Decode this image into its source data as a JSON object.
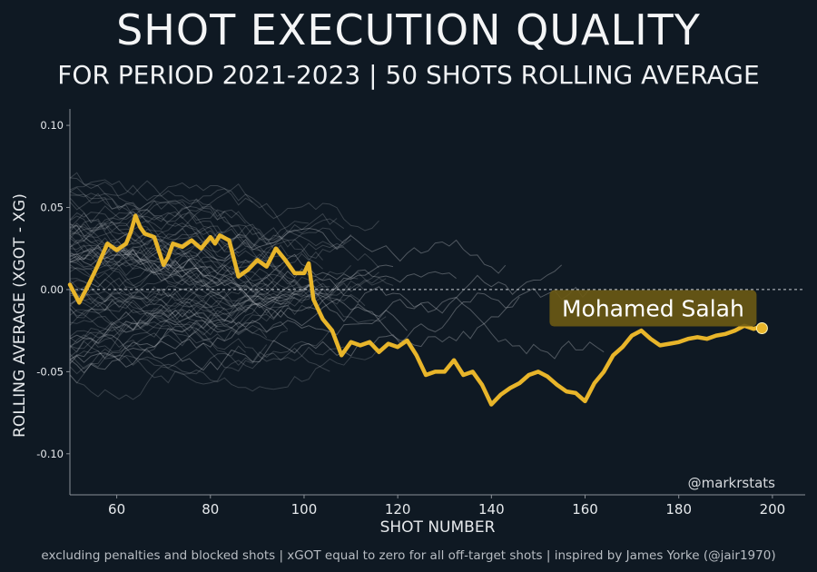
{
  "title": "SHOT EXECUTION QUALITY",
  "subtitle": "FOR PERIOD 2021-2023 | 50 SHOTS ROLLING AVERAGE",
  "footer": "excluding penalties and blocked shots | xGOT equal to zero for all off-target shots | inspired by James Yorke (@jair1970)",
  "credit": "@markrstats",
  "colors": {
    "background": "#0f1923",
    "highlight": "#e8b52a",
    "label_box": "#6b5a14",
    "others": "#c8ccd2",
    "zero_line": "#c8ccd2"
  },
  "chart_data": {
    "type": "line",
    "title": "SHOT EXECUTION QUALITY",
    "subtitle": "FOR PERIOD 2021-2023 | 50 SHOTS ROLLING AVERAGE",
    "xlabel": "SHOT NUMBER",
    "ylabel": "ROLLING AVERAGE (XGOT - XG)",
    "xlim": [
      50,
      207
    ],
    "ylim": [
      -0.125,
      0.11
    ],
    "xticks": [
      60,
      80,
      100,
      120,
      140,
      160,
      180,
      200
    ],
    "yticks": [
      -0.1,
      -0.05,
      0.0,
      0.05,
      0.1
    ],
    "ytick_labels": [
      "-0.10",
      "-0.05",
      "0.00",
      "0.05",
      "0.10"
    ],
    "reference_line": {
      "y": 0,
      "style": "dashed"
    },
    "grid": false,
    "highlight": {
      "name": "Mohamed Salah",
      "x": [
        50,
        52,
        54,
        56,
        58,
        60,
        62,
        63,
        64,
        65,
        66,
        68,
        70,
        71,
        72,
        74,
        76,
        78,
        80,
        81,
        82,
        84,
        86,
        88,
        90,
        92,
        94,
        96,
        98,
        100,
        101,
        102,
        104,
        106,
        108,
        110,
        112,
        114,
        116,
        118,
        120,
        122,
        124,
        126,
        128,
        130,
        132,
        134,
        136,
        138,
        140,
        142,
        144,
        146,
        148,
        150,
        152,
        154,
        156,
        158,
        160,
        162,
        164,
        166,
        168,
        170,
        172,
        174,
        176,
        178,
        180,
        182,
        184,
        186,
        188,
        190,
        192,
        194,
        196,
        197
      ],
      "y": [
        0.003,
        -0.008,
        0.003,
        0.015,
        0.028,
        0.024,
        0.028,
        0.035,
        0.045,
        0.038,
        0.034,
        0.032,
        0.015,
        0.02,
        0.028,
        0.026,
        0.03,
        0.025,
        0.032,
        0.028,
        0.033,
        0.03,
        0.008,
        0.012,
        0.018,
        0.014,
        0.025,
        0.018,
        0.01,
        0.01,
        0.016,
        -0.006,
        -0.018,
        -0.025,
        -0.04,
        -0.032,
        -0.034,
        -0.032,
        -0.038,
        -0.033,
        -0.035,
        -0.031,
        -0.04,
        -0.052,
        -0.05,
        -0.05,
        -0.043,
        -0.052,
        -0.05,
        -0.058,
        -0.07,
        -0.064,
        -0.06,
        -0.057,
        -0.052,
        -0.05,
        -0.053,
        -0.058,
        -0.062,
        -0.063,
        -0.068,
        -0.057,
        -0.05,
        -0.04,
        -0.035,
        -0.028,
        -0.025,
        -0.03,
        -0.034,
        -0.033,
        -0.032,
        -0.03,
        -0.029,
        -0.03,
        -0.028,
        -0.027,
        -0.025,
        -0.022,
        -0.024,
        -0.023
      ]
    }
  }
}
